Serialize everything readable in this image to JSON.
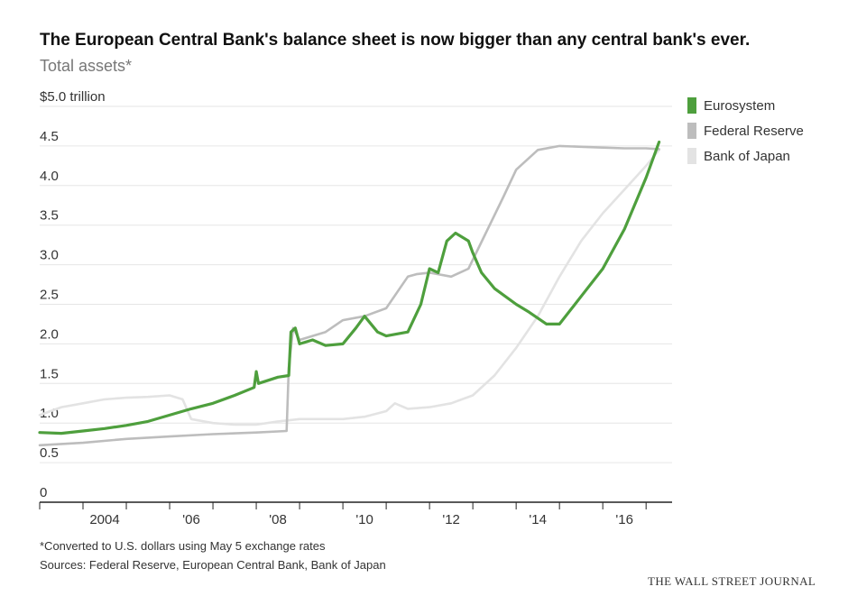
{
  "header": {
    "title": "The European Central Bank's balance sheet is now bigger than any central bank's ever.",
    "subtitle": "Total assets*"
  },
  "footer": {
    "note": "*Converted to U.S. dollars using May 5 exchange rates",
    "sources": "Sources: Federal Reserve, European Central Bank, Bank of Japan",
    "brand": "THE WALL STREET JOURNAL"
  },
  "colors": {
    "eurosystem": "#4e9f3d",
    "fed": "#bdbdbd",
    "boj": "#e3e3e3",
    "grid": "#e6e6e6",
    "axis": "#222222"
  },
  "chart_data": {
    "type": "line",
    "title": "The European Central Bank's balance sheet is now bigger than any central bank's ever.",
    "subtitle": "Total assets*",
    "ylabel": "$ trillion",
    "ylim": [
      0,
      5
    ],
    "xlim": [
      2003.0,
      2017.6
    ],
    "y_ticks": [
      {
        "value": 0,
        "label": "0"
      },
      {
        "value": 0.5,
        "label": "0.5"
      },
      {
        "value": 1.0,
        "label": "1.0"
      },
      {
        "value": 1.5,
        "label": "1.5"
      },
      {
        "value": 2.0,
        "label": "2.0"
      },
      {
        "value": 2.5,
        "label": "2.5"
      },
      {
        "value": 3.0,
        "label": "3.0"
      },
      {
        "value": 3.5,
        "label": "3.5"
      },
      {
        "value": 4.0,
        "label": "4.0"
      },
      {
        "value": 4.5,
        "label": "4.5"
      },
      {
        "value": 5.0,
        "label": "$5.0 trillion"
      }
    ],
    "x_ticks": [
      {
        "value": 2004,
        "label": "2004"
      },
      {
        "value": 2006,
        "label": "'06"
      },
      {
        "value": 2008,
        "label": "'08"
      },
      {
        "value": 2010,
        "label": "'10"
      },
      {
        "value": 2012,
        "label": "'12"
      },
      {
        "value": 2014,
        "label": "'14"
      },
      {
        "value": 2016,
        "label": "'16"
      }
    ],
    "grid": true,
    "legend_position": "right",
    "series": [
      {
        "name": "Bank of Japan",
        "color_key": "boj",
        "x": [
          2003.0,
          2003.5,
          2004.0,
          2004.5,
          2005.0,
          2005.5,
          2006.0,
          2006.3,
          2006.5,
          2007.0,
          2007.5,
          2008.0,
          2008.5,
          2009.0,
          2009.5,
          2010.0,
          2010.5,
          2011.0,
          2011.2,
          2011.5,
          2012.0,
          2012.5,
          2013.0,
          2013.5,
          2014.0,
          2014.5,
          2015.0,
          2015.5,
          2016.0,
          2016.5,
          2017.0,
          2017.3
        ],
        "y": [
          1.1,
          1.2,
          1.25,
          1.3,
          1.32,
          1.33,
          1.35,
          1.3,
          1.05,
          1.0,
          0.98,
          0.98,
          1.02,
          1.05,
          1.05,
          1.05,
          1.08,
          1.15,
          1.25,
          1.18,
          1.2,
          1.25,
          1.35,
          1.6,
          1.95,
          2.35,
          2.85,
          3.3,
          3.65,
          3.95,
          4.25,
          4.45
        ]
      },
      {
        "name": "Federal Reserve",
        "color_key": "fed",
        "x": [
          2003.0,
          2004.0,
          2005.0,
          2006.0,
          2007.0,
          2008.0,
          2008.7,
          2008.75,
          2008.85,
          2009.0,
          2009.3,
          2009.6,
          2010.0,
          2010.5,
          2011.0,
          2011.5,
          2011.7,
          2012.0,
          2012.5,
          2012.9,
          2013.3,
          2013.7,
          2014.0,
          2014.5,
          2015.0,
          2015.5,
          2016.0,
          2016.5,
          2017.0,
          2017.3
        ],
        "y": [
          0.72,
          0.75,
          0.8,
          0.83,
          0.86,
          0.88,
          0.9,
          1.7,
          2.2,
          2.05,
          2.1,
          2.15,
          2.3,
          2.35,
          2.45,
          2.85,
          2.88,
          2.9,
          2.85,
          2.95,
          3.4,
          3.85,
          4.2,
          4.45,
          4.5,
          4.49,
          4.48,
          4.47,
          4.47,
          4.46
        ]
      },
      {
        "name": "Eurosystem",
        "color_key": "eurosystem",
        "x": [
          2003.0,
          2003.5,
          2004.0,
          2004.5,
          2005.0,
          2005.5,
          2006.0,
          2006.5,
          2007.0,
          2007.5,
          2007.95,
          2008.0,
          2008.05,
          2008.5,
          2008.75,
          2008.8,
          2008.9,
          2009.0,
          2009.3,
          2009.6,
          2010.0,
          2010.3,
          2010.5,
          2010.8,
          2011.0,
          2011.5,
          2011.8,
          2012.0,
          2012.2,
          2012.4,
          2012.6,
          2012.9,
          2013.0,
          2013.2,
          2013.5,
          2014.0,
          2014.3,
          2014.7,
          2015.0,
          2015.5,
          2016.0,
          2016.5,
          2017.0,
          2017.3
        ],
        "y": [
          0.88,
          0.87,
          0.9,
          0.93,
          0.97,
          1.02,
          1.1,
          1.18,
          1.25,
          1.35,
          1.45,
          1.65,
          1.5,
          1.58,
          1.6,
          2.15,
          2.2,
          2.0,
          2.05,
          1.98,
          2.0,
          2.2,
          2.35,
          2.15,
          2.1,
          2.15,
          2.5,
          2.95,
          2.9,
          3.3,
          3.4,
          3.3,
          3.15,
          2.9,
          2.7,
          2.5,
          2.4,
          2.25,
          2.25,
          2.6,
          2.95,
          3.45,
          4.1,
          4.55
        ]
      }
    ]
  }
}
